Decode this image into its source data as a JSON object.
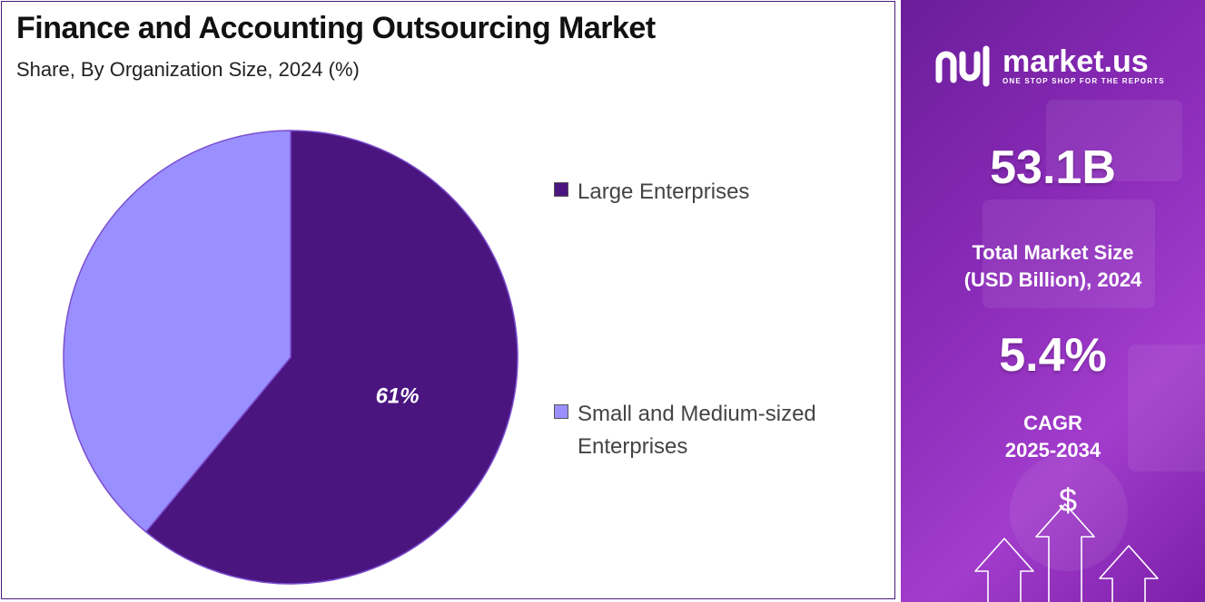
{
  "chart_data": {
    "type": "pie",
    "title": "Finance and Accounting Outsourcing Market",
    "subtitle": "Share, By Organization Size, 2024 (%)",
    "slices": [
      {
        "label": "Large Enterprises",
        "value": 61,
        "data_label": "61%",
        "color": "#4b1580"
      },
      {
        "label": "Small and Medium-sized Enterprises",
        "value": 39,
        "data_label": "",
        "color": "#9a8fff"
      }
    ],
    "legend_position": "right"
  },
  "sidebar": {
    "brand_name": "market.us",
    "brand_tagline": "ONE STOP SHOP FOR THE REPORTS",
    "market_size_value": "53.1B",
    "market_size_label_line1": "Total Market Size",
    "market_size_label_line2": "(USD Billion), 2024",
    "cagr_value": "5.4%",
    "cagr_label_line1": "CAGR",
    "cagr_label_line2": "2025-2034",
    "currency_symbol": "$",
    "accent_color": "#8a2bb8"
  }
}
